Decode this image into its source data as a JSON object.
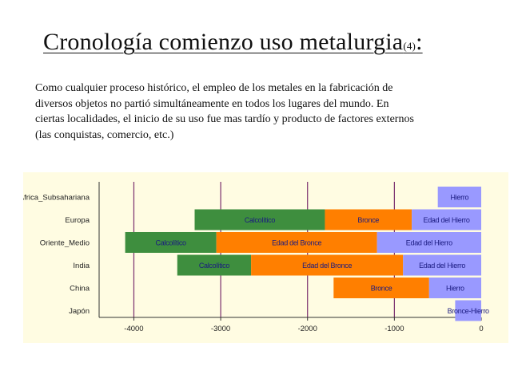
{
  "slide": {
    "title": "Cronología comienzo uso metalurgia",
    "title_ref": "(4)",
    "title_colon": ":",
    "intro_lines": [
      "Como cualquier proceso histórico, el empleo de los metales en la fabricación de",
      "diversos objetos no partió simultáneamente en todos los lugares del mundo. En",
      "ciertas localidades, el inicio de su uso fue mas tardío y producto de factores externos",
      "(las conquistas, comercio, etc.)"
    ]
  },
  "chart_data": {
    "type": "bar",
    "orientation": "horizontal-stacked",
    "title": "",
    "xlabel": "",
    "ylabel": "",
    "xlim": [
      -4400,
      0
    ],
    "xticks": [
      -4000,
      -3000,
      -2000,
      -1000,
      0
    ],
    "grid": "vertical",
    "legend": "none",
    "colors": {
      "Calcolítico": "#3e8e3e",
      "Bronce": "#ff7f00",
      "Hierro": "#9999ff",
      "Bronce-Hierro": "#9999ff",
      "gridline": "#7a2e6e",
      "background": "#fffce2"
    },
    "categories": [
      "Africa_Subsahariana",
      "Europa",
      "Oriente_Medio",
      "India",
      "China",
      "Japón"
    ],
    "rows": [
      {
        "category": "Africa_Subsahariana",
        "segments": [
          {
            "label": "Hierro",
            "phase": "Hierro",
            "start": -500,
            "end": 0
          }
        ]
      },
      {
        "category": "Europa",
        "segments": [
          {
            "label": "Calcolítico",
            "phase": "Calcolítico",
            "start": -3300,
            "end": -1800
          },
          {
            "label": "Bronce",
            "phase": "Bronce",
            "start": -1800,
            "end": -800
          },
          {
            "label": "Edad del Hierro",
            "phase": "Hierro",
            "start": -800,
            "end": 0
          }
        ]
      },
      {
        "category": "Oriente_Medio",
        "segments": [
          {
            "label": "Calcolítico",
            "phase": "Calcolítico",
            "start": -4100,
            "end": -3050
          },
          {
            "label": "Edad del Bronce",
            "phase": "Bronce",
            "start": -3050,
            "end": -1200
          },
          {
            "label": "Edad del Hierro",
            "phase": "Hierro",
            "start": -1200,
            "end": 0
          }
        ]
      },
      {
        "category": "India",
        "segments": [
          {
            "label": "Calcolítico",
            "phase": "Calcolítico",
            "start": -3500,
            "end": -2650
          },
          {
            "label": "Edad del Bronce",
            "phase": "Bronce",
            "start": -2650,
            "end": -900
          },
          {
            "label": "Edad del Hierro",
            "phase": "Hierro",
            "start": -900,
            "end": 0
          }
        ]
      },
      {
        "category": "China",
        "segments": [
          {
            "label": "Bronce",
            "phase": "Bronce",
            "start": -1700,
            "end": -600
          },
          {
            "label": "Hierro",
            "phase": "Hierro",
            "start": -600,
            "end": 0
          }
        ]
      },
      {
        "category": "Japón",
        "segments": [
          {
            "label": "Bronce-Hierro",
            "phase": "Bronce-Hierro",
            "start": -300,
            "end": 0
          }
        ]
      }
    ]
  }
}
